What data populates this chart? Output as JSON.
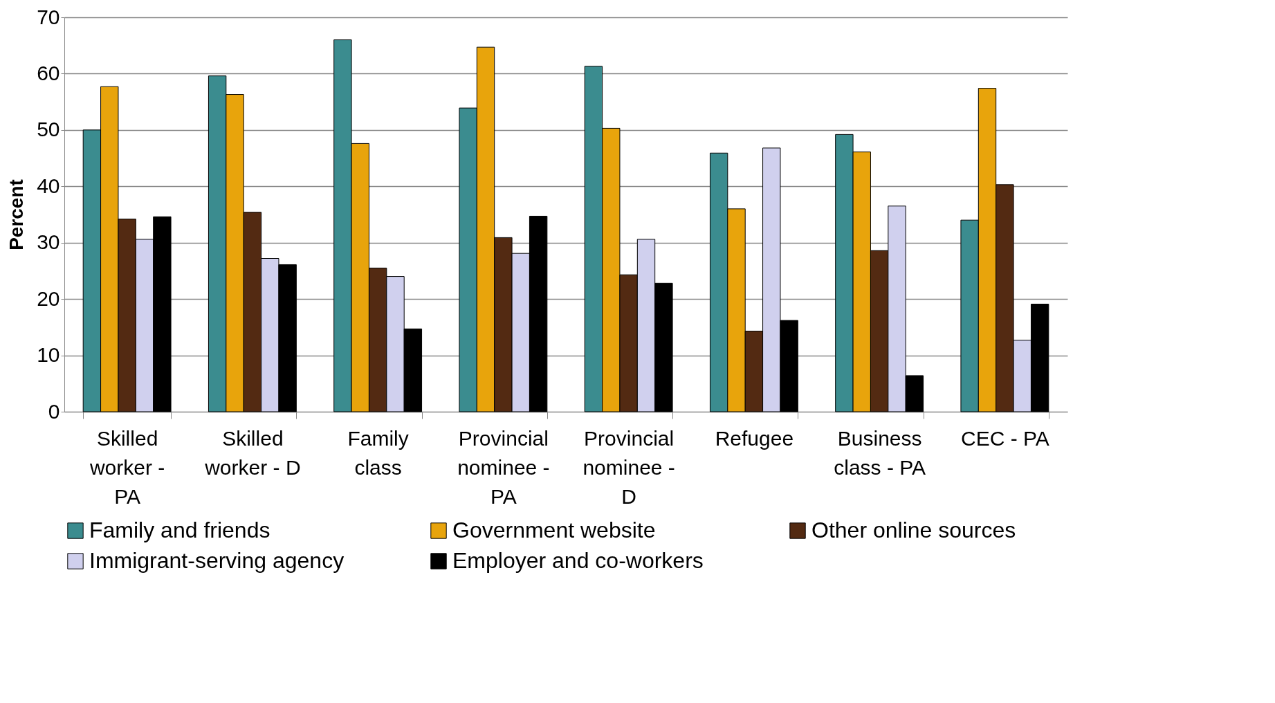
{
  "chart_data": {
    "type": "bar",
    "ylabel": "Percent",
    "categories": [
      "Skilled worker - PA",
      "Skilled worker - D",
      "Family class",
      "Provincial nominee - PA",
      "Provincial nominee - D",
      "Refugee",
      "Business class - PA",
      "CEC - PA"
    ],
    "series": [
      {
        "name": "Family and friends",
        "color": "#3b8c8f",
        "values": [
          50,
          59.6,
          66,
          53.9,
          61.3,
          45.9,
          49.2,
          34
        ]
      },
      {
        "name": "Government website",
        "color": "#e8a40c",
        "values": [
          57.7,
          56.3,
          47.6,
          64.7,
          50.3,
          36,
          46.1,
          57.4
        ]
      },
      {
        "name": "Other online sources",
        "color": "#532a12",
        "values": [
          34.2,
          35.4,
          25.5,
          30.9,
          24.3,
          14.3,
          28.6,
          40.3
        ]
      },
      {
        "name": "Immigrant-serving agency",
        "color": "#d0d0ee",
        "values": [
          30.6,
          27.2,
          24,
          28.1,
          30.6,
          46.8,
          36.5,
          12.7
        ]
      },
      {
        "name": "Employer and co-workers",
        "color": "#000000",
        "values": [
          34.6,
          26.1,
          14.7,
          34.7,
          22.8,
          16.2,
          6.4,
          19.1
        ]
      }
    ],
    "ylim": [
      0,
      70
    ],
    "yticks": [
      0,
      10,
      20,
      30,
      40,
      50,
      60,
      70
    ],
    "grid": "y",
    "legend": "bottom"
  }
}
